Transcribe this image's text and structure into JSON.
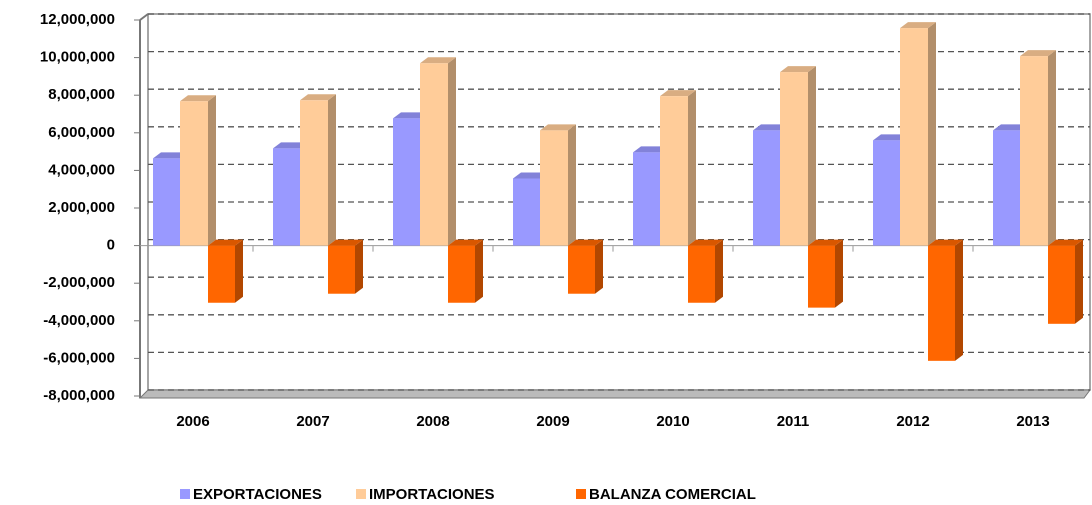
{
  "chart_data": {
    "type": "bar3d",
    "categories": [
      "2006",
      "2007",
      "2008",
      "2009",
      "2010",
      "2011",
      "2012",
      "2013"
    ],
    "series": [
      {
        "name": "EXPORTACIONES",
        "color": "#9999ff",
        "values": [
          4640000,
          5170000,
          6770000,
          3570000,
          4960000,
          6130000,
          5600000,
          6130000
        ]
      },
      {
        "name": "IMPORTACIONES",
        "color": "#ffcc99",
        "values": [
          7680000,
          7730000,
          9700000,
          6130000,
          7950000,
          9230000,
          11570000,
          10080000
        ]
      },
      {
        "name": "BALANZA COMERCIAL",
        "color": "#ff6600",
        "values": [
          -3040000,
          -2560000,
          -3040000,
          -2560000,
          -3040000,
          -3300000,
          -6130000,
          -4160000
        ]
      }
    ],
    "ylim": [
      -8000000,
      12000000
    ],
    "yticks": [
      {
        "value": -8000000,
        "label": "-8,000,000"
      },
      {
        "value": -6000000,
        "label": "-6,000,000"
      },
      {
        "value": -4000000,
        "label": "-4,000,000"
      },
      {
        "value": -2000000,
        "label": "-2,000,000"
      },
      0,
      {
        "value": 2000000,
        "label": "2,000,000"
      },
      {
        "value": 4000000,
        "label": "4,000,000"
      },
      {
        "value": 6000000,
        "label": "6,000,000"
      },
      {
        "value": 8000000,
        "label": "8,000,000"
      },
      {
        "value": 10000000,
        "label": "10,000,000"
      },
      {
        "value": 12000000,
        "label": "12,000,000"
      }
    ],
    "grid": true
  }
}
